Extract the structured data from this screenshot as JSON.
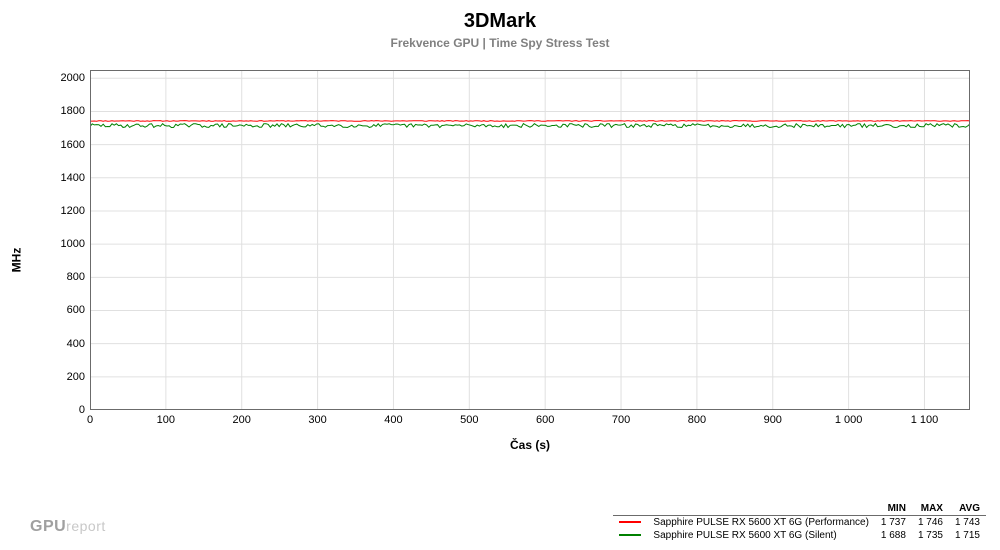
{
  "chart": {
    "type": "line",
    "title": "3DMark",
    "subtitle": "Frekvence GPU | Time Spy Stress Test",
    "ylabel": "MHz",
    "xlabel": "Čas (s)",
    "title_fontsize": 20,
    "subtitle_fontsize": 12,
    "label_fontsize": 12,
    "tick_fontsize": 11,
    "background_color": "#ffffff",
    "grid_color": "#e0e0e0",
    "axis_color": "#6b6b6b",
    "xlim": [
      0,
      1160
    ],
    "ylim": [
      0,
      2050
    ],
    "xtick_step": 100,
    "xtick_max_label": 1100,
    "ytick_step": 200,
    "ytick_max_label": 2000,
    "line_width": 1,
    "series": [
      {
        "name": "Sapphire PULSE RX 5600 XT 6G (Performance)",
        "color": "#ff0000",
        "min": "1 737",
        "max": "1 746",
        "avg": "1 743",
        "baseline": 1743,
        "noise_amp": 2,
        "noise_seed": 11
      },
      {
        "name": "Sapphire PULSE RX 5600 XT 6G (Silent)",
        "color": "#008000",
        "min": "1 688",
        "max": "1 735",
        "avg": "1 715",
        "baseline": 1715,
        "noise_amp": 12,
        "noise_seed": 29
      }
    ],
    "legend_headers": {
      "min": "MIN",
      "max": "MAX",
      "avg": "AVG"
    }
  },
  "watermark": {
    "strong": "GPU",
    "light": "report"
  }
}
